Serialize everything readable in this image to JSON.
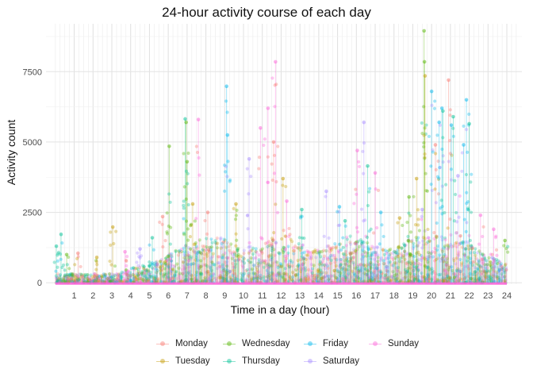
{
  "chart_data": {
    "type": "scatter",
    "title": "24-hour activity course of each day",
    "xlabel": "Time in a day (hour)",
    "ylabel": "Activity count",
    "xlim": [
      -0.5,
      24.8
    ],
    "ylim": [
      -50,
      9200
    ],
    "x_ticks": [
      "1",
      "2",
      "3",
      "4",
      "5",
      "6",
      "7",
      "8",
      "9",
      "10",
      "11",
      "12",
      "13",
      "14",
      "15",
      "16",
      "17",
      "18",
      "19",
      "20",
      "21",
      "22",
      "23",
      "24"
    ],
    "y_ticks": [
      "0",
      "2500",
      "5000",
      "7500"
    ],
    "grid": true,
    "legend_position": "bottom",
    "series": [
      {
        "name": "Monday",
        "color": "#F8766D"
      },
      {
        "name": "Tuesday",
        "color": "#C49A00"
      },
      {
        "name": "Wednesday",
        "color": "#53B400"
      },
      {
        "name": "Thursday",
        "color": "#00C094"
      },
      {
        "name": "Friday",
        "color": "#00B6EB"
      },
      {
        "name": "Saturday",
        "color": "#A58AFF"
      },
      {
        "name": "Sunday",
        "color": "#FB61D7"
      }
    ],
    "peaks": [
      {
        "x": 0.05,
        "y": 1300,
        "s": 3
      },
      {
        "x": 0.3,
        "y": 1720,
        "s": 3
      },
      {
        "x": 0.6,
        "y": 1000,
        "s": 2
      },
      {
        "x": 1.2,
        "y": 1050,
        "s": 0
      },
      {
        "x": 2.2,
        "y": 900,
        "s": 1
      },
      {
        "x": 3.05,
        "y": 1980,
        "s": 1
      },
      {
        "x": 3.7,
        "y": 1100,
        "s": 6
      },
      {
        "x": 4.5,
        "y": 1200,
        "s": 5
      },
      {
        "x": 5.15,
        "y": 1600,
        "s": 3
      },
      {
        "x": 5.7,
        "y": 2350,
        "s": 0
      },
      {
        "x": 6.05,
        "y": 4850,
        "s": 2
      },
      {
        "x": 6.9,
        "y": 5820,
        "s": 3
      },
      {
        "x": 6.95,
        "y": 5700,
        "s": 2
      },
      {
        "x": 7.0,
        "y": 4300,
        "s": 2
      },
      {
        "x": 7.3,
        "y": 2800,
        "s": 1
      },
      {
        "x": 7.6,
        "y": 5800,
        "s": 6
      },
      {
        "x": 8.1,
        "y": 2500,
        "s": 0
      },
      {
        "x": 9.1,
        "y": 6980,
        "s": 4
      },
      {
        "x": 9.15,
        "y": 5250,
        "s": 4
      },
      {
        "x": 9.6,
        "y": 2800,
        "s": 1
      },
      {
        "x": 10.3,
        "y": 4400,
        "s": 5
      },
      {
        "x": 10.9,
        "y": 5500,
        "s": 6
      },
      {
        "x": 11.3,
        "y": 6200,
        "s": 6
      },
      {
        "x": 11.6,
        "y": 5000,
        "s": 0
      },
      {
        "x": 11.7,
        "y": 7850,
        "s": 6
      },
      {
        "x": 12.1,
        "y": 3700,
        "s": 1
      },
      {
        "x": 12.3,
        "y": 2900,
        "s": 6
      },
      {
        "x": 13.1,
        "y": 2600,
        "s": 3
      },
      {
        "x": 14.4,
        "y": 3250,
        "s": 5
      },
      {
        "x": 15.1,
        "y": 2700,
        "s": 4
      },
      {
        "x": 15.4,
        "y": 2200,
        "s": 3
      },
      {
        "x": 16.05,
        "y": 4700,
        "s": 6
      },
      {
        "x": 16.4,
        "y": 5700,
        "s": 5
      },
      {
        "x": 16.6,
        "y": 4150,
        "s": 3
      },
      {
        "x": 17.0,
        "y": 3900,
        "s": 6
      },
      {
        "x": 17.3,
        "y": 2500,
        "s": 4
      },
      {
        "x": 18.3,
        "y": 2300,
        "s": 1
      },
      {
        "x": 18.8,
        "y": 3050,
        "s": 2
      },
      {
        "x": 19.2,
        "y": 3700,
        "s": 1
      },
      {
        "x": 19.5,
        "y": 2600,
        "s": 5
      },
      {
        "x": 19.6,
        "y": 8950,
        "s": 2
      },
      {
        "x": 19.62,
        "y": 7850,
        "s": 2
      },
      {
        "x": 19.65,
        "y": 7350,
        "s": 1
      },
      {
        "x": 20.0,
        "y": 6800,
        "s": 4
      },
      {
        "x": 20.2,
        "y": 4900,
        "s": 0
      },
      {
        "x": 20.4,
        "y": 5700,
        "s": 4
      },
      {
        "x": 20.55,
        "y": 6200,
        "s": 4
      },
      {
        "x": 20.6,
        "y": 6100,
        "s": 3
      },
      {
        "x": 20.9,
        "y": 7200,
        "s": 0
      },
      {
        "x": 21.05,
        "y": 5600,
        "s": 4
      },
      {
        "x": 21.15,
        "y": 5900,
        "s": 3
      },
      {
        "x": 21.4,
        "y": 3800,
        "s": 5
      },
      {
        "x": 21.7,
        "y": 4900,
        "s": 4
      },
      {
        "x": 21.85,
        "y": 6500,
        "s": 4
      },
      {
        "x": 22.0,
        "y": 5650,
        "s": 3
      },
      {
        "x": 22.6,
        "y": 2400,
        "s": 6
      },
      {
        "x": 23.3,
        "y": 1900,
        "s": 6
      },
      {
        "x": 23.9,
        "y": 1500,
        "s": 2
      }
    ]
  }
}
